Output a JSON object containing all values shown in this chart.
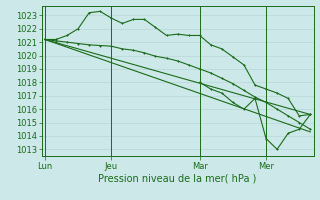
{
  "bg_color": "#cce8e8",
  "grid_color": "#b8d8d8",
  "line_color": "#1a6b1a",
  "ylim": [
    1012.5,
    1023.7
  ],
  "yticks": [
    1013,
    1014,
    1015,
    1016,
    1017,
    1018,
    1019,
    1020,
    1021,
    1022,
    1023
  ],
  "xlabel": "Pression niveau de la mer( hPa )",
  "xtick_labels": [
    "Lun",
    "Jeu",
    "Mar",
    "Mer"
  ],
  "xtick_positions": [
    0,
    6,
    14,
    20
  ],
  "xlim": [
    -0.3,
    24.3
  ],
  "vlines": [
    0,
    6,
    14,
    20
  ],
  "tick_fontsize": 6,
  "xlabel_fontsize": 7,
  "line1_x": [
    0,
    1,
    2,
    3,
    4,
    5,
    6,
    7,
    8,
    9,
    10,
    11,
    12,
    13,
    14,
    15,
    16,
    17,
    18,
    19,
    20,
    21,
    22,
    23,
    24
  ],
  "line1_y": [
    1021.2,
    1021.2,
    1021.5,
    1022.0,
    1023.2,
    1023.3,
    1022.8,
    1022.4,
    1022.7,
    1022.7,
    1022.1,
    1021.5,
    1021.6,
    1021.5,
    1021.5,
    1020.8,
    1020.5,
    1019.9,
    1019.3,
    1017.8,
    1017.5,
    1017.2,
    1016.8,
    1015.5,
    1015.6
  ],
  "line2_x": [
    0,
    1,
    2,
    3,
    4,
    5,
    6,
    7,
    8,
    9,
    10,
    11,
    12,
    13,
    14,
    15,
    16,
    17,
    18,
    19,
    20,
    21,
    22,
    23,
    24
  ],
  "line2_y": [
    1021.2,
    1021.1,
    1021.0,
    1020.9,
    1020.8,
    1020.75,
    1020.7,
    1020.5,
    1020.4,
    1020.2,
    1019.95,
    1019.8,
    1019.6,
    1019.3,
    1019.0,
    1018.7,
    1018.3,
    1017.9,
    1017.4,
    1016.9,
    1016.5,
    1016.0,
    1015.5,
    1015.0,
    1014.5
  ],
  "line3_x": [
    0,
    24
  ],
  "line3_y": [
    1021.2,
    1015.6
  ],
  "line4_x": [
    0,
    24
  ],
  "line4_y": [
    1021.2,
    1014.3
  ],
  "line5_x": [
    14,
    15,
    16,
    17,
    18,
    19,
    20,
    21,
    22,
    23,
    24
  ],
  "line5_y": [
    1018.0,
    1017.5,
    1017.2,
    1016.5,
    1016.0,
    1016.8,
    1013.8,
    1013.0,
    1014.2,
    1014.5,
    1015.6
  ]
}
